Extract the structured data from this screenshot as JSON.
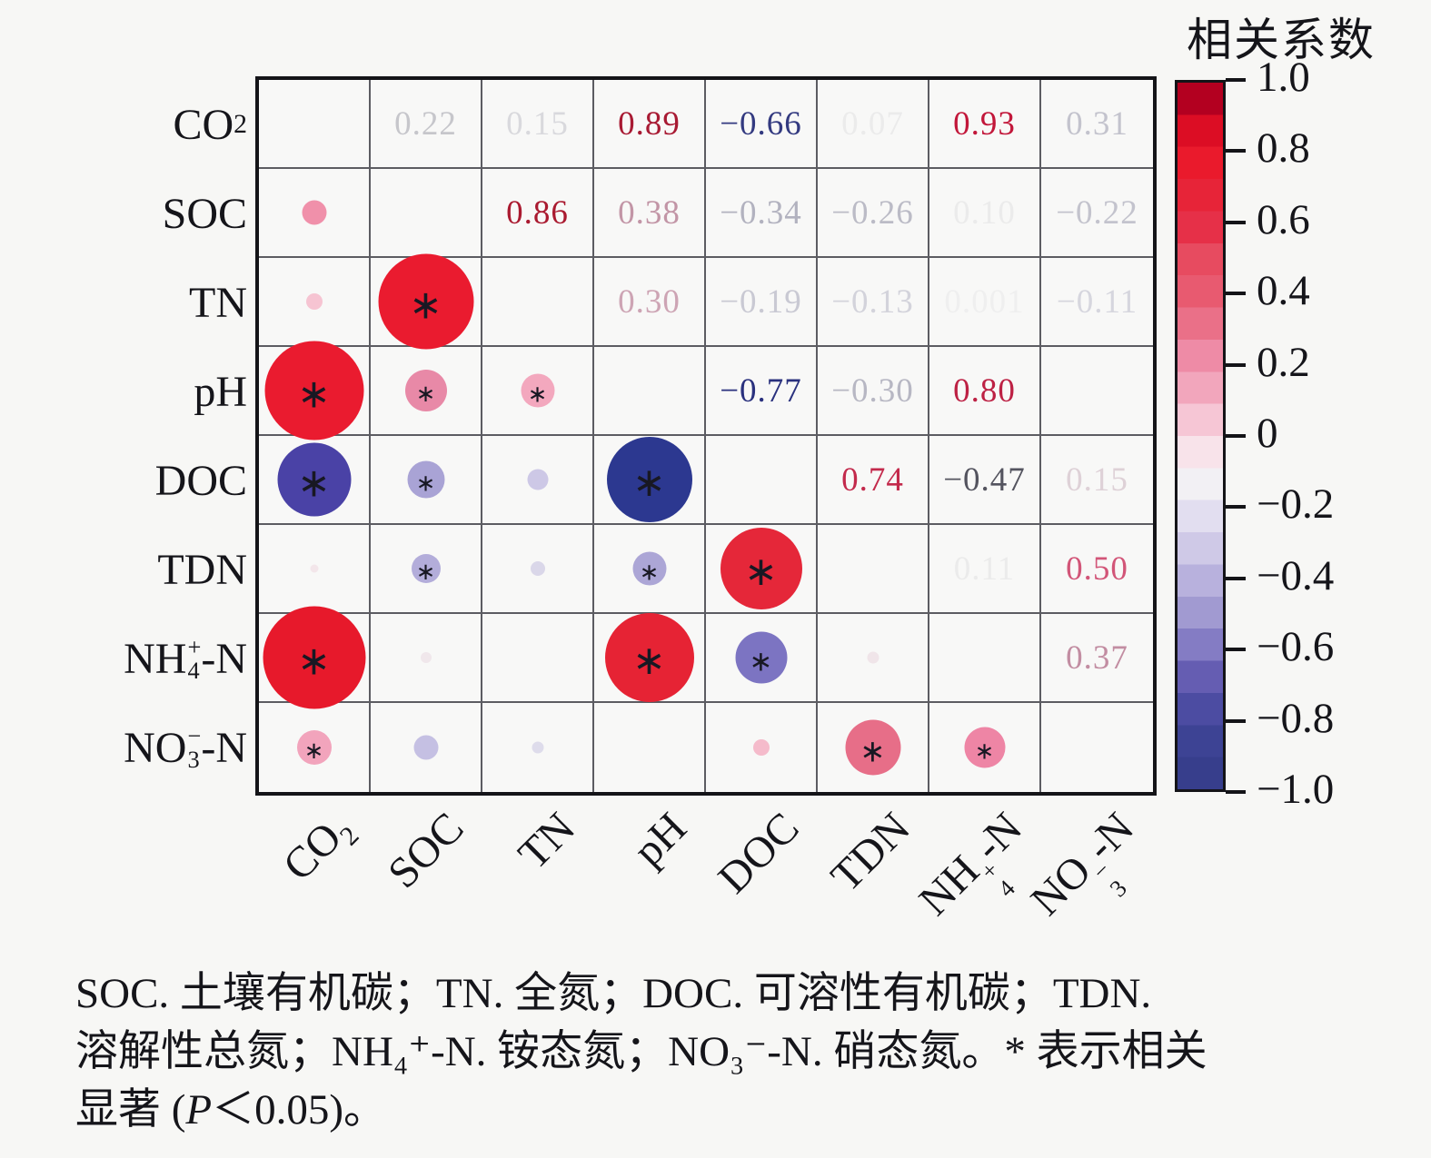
{
  "colorbar": {
    "title": "相关系数",
    "tick_labels": [
      "1.0",
      "0.8",
      "0.6",
      "0.4",
      "0.2",
      "0",
      "−0.2",
      "−0.4",
      "−0.6",
      "−0.8",
      "−1.0"
    ],
    "bands_top_to_bottom": [
      "#b30020",
      "#dc0d24",
      "#ea1a2c",
      "#e72438",
      "#e63048",
      "#e74b60",
      "#e85a70",
      "#ea7088",
      "#ee8ba6",
      "#f2a6bc",
      "#f6c6d5",
      "#f8e3ea",
      "#f2f0f4",
      "#e2def0",
      "#cfc9e7",
      "#b8b1dd",
      "#a19ad1",
      "#847cc4",
      "#655db2",
      "#4c4ca2",
      "#3d4394",
      "#373e8c"
    ]
  },
  "caption": {
    "line1": "SOC. 土壤有机碳；TN. 全氮；DOC. 可溶性有机碳；TDN.",
    "line2": "溶解性总氮；NH₄⁺-N. 铵态氮；NO₃⁻-N. 硝态氮。* 表示相关",
    "line3_pre": "显著 (",
    "line3_p": "P",
    "line3_post": "＜0.05)。"
  },
  "chart_data": {
    "type": "correlation-matrix",
    "legend_title": "相关系数",
    "colorbar_range": [
      1.0,
      -1.0
    ],
    "variables": [
      {
        "id": "co2",
        "base": "CO",
        "sub": "2",
        "sup": "",
        "suffix": ""
      },
      {
        "id": "soc",
        "base": "SOC",
        "sub": "",
        "sup": "",
        "suffix": ""
      },
      {
        "id": "tn",
        "base": "TN",
        "sub": "",
        "sup": "",
        "suffix": ""
      },
      {
        "id": "ph",
        "base": "pH",
        "sub": "",
        "sup": "",
        "suffix": ""
      },
      {
        "id": "doc",
        "base": "DOC",
        "sub": "",
        "sup": "",
        "suffix": ""
      },
      {
        "id": "tdn",
        "base": "TDN",
        "sub": "",
        "sup": "",
        "suffix": ""
      },
      {
        "id": "nh4-n",
        "base": "NH",
        "sub": "4",
        "sup": "+",
        "suffix": "-N"
      },
      {
        "id": "no3-n",
        "base": "NO",
        "sub": "3",
        "sup": "−",
        "suffix": "-N"
      }
    ],
    "pairs": [
      {
        "a": 0,
        "b": 1,
        "r": 0.22,
        "label": "0.22",
        "num_color": "#c6c6cb",
        "circle_color": "#f090aa",
        "star": false
      },
      {
        "a": 0,
        "b": 2,
        "r": 0.15,
        "label": "0.15",
        "num_color": "#d9d9dd",
        "circle_color": "#f6c4d2",
        "star": false
      },
      {
        "a": 0,
        "b": 3,
        "r": 0.89,
        "label": "0.89",
        "num_color": "#a81a33",
        "circle_color": "#ea1b2f",
        "star": true
      },
      {
        "a": 0,
        "b": 4,
        "r": -0.66,
        "label": "−0.66",
        "num_color": "#333a80",
        "circle_color": "#4a42a6",
        "star": true
      },
      {
        "a": 0,
        "b": 5,
        "r": 0.07,
        "label": "0.07",
        "num_color": "#ebebeb",
        "circle_color": "#f3e6ea",
        "star": false
      },
      {
        "a": 0,
        "b": 6,
        "r": 0.93,
        "label": "0.93",
        "num_color": "#c2173a",
        "circle_color": "#e7192b",
        "star": true
      },
      {
        "a": 0,
        "b": 7,
        "r": 0.31,
        "label": "0.31",
        "num_color": "#c3c3cd",
        "circle_color": "#f2a4bc",
        "star": true
      },
      {
        "a": 1,
        "b": 2,
        "r": 0.86,
        "label": "0.86",
        "num_color": "#aa1a30",
        "circle_color": "#ea1b2f",
        "star": true
      },
      {
        "a": 1,
        "b": 3,
        "r": 0.38,
        "label": "0.38",
        "num_color": "#c295a6",
        "circle_color": "#e889a7",
        "star": true
      },
      {
        "a": 1,
        "b": 4,
        "r": -0.34,
        "label": "−0.34",
        "num_color": "#b2b2bf",
        "circle_color": "#a9a3d5",
        "star": true
      },
      {
        "a": 1,
        "b": 5,
        "r": -0.26,
        "label": "−0.26",
        "num_color": "#bbbbc6",
        "circle_color": "#b3adda",
        "star": true
      },
      {
        "a": 1,
        "b": 6,
        "r": 0.1,
        "label": "0.10",
        "num_color": "#ebebeb",
        "circle_color": "#f0e7eb",
        "star": false
      },
      {
        "a": 1,
        "b": 7,
        "r": -0.22,
        "label": "−0.22",
        "num_color": "#c3c3cd",
        "circle_color": "#c5c0e3",
        "star": false
      },
      {
        "a": 2,
        "b": 3,
        "r": 0.3,
        "label": "0.30",
        "num_color": "#cda4b4",
        "circle_color": "#f3a8be",
        "star": true
      },
      {
        "a": 2,
        "b": 4,
        "r": -0.19,
        "label": "−0.19",
        "num_color": "#c9c9d3",
        "circle_color": "#cdc8e6",
        "star": false
      },
      {
        "a": 2,
        "b": 5,
        "r": -0.13,
        "label": "−0.13",
        "num_color": "#d3d3db",
        "circle_color": "#dad7e9",
        "star": false
      },
      {
        "a": 2,
        "b": 6,
        "r": 0.001,
        "label": "0.001",
        "num_color": "#efefef",
        "circle_color": "#eeecee",
        "star": false
      },
      {
        "a": 2,
        "b": 7,
        "r": -0.11,
        "label": "−0.11",
        "num_color": "#d6d6de",
        "circle_color": "#dedceb",
        "star": false
      },
      {
        "a": 3,
        "b": 4,
        "r": -0.77,
        "label": "−0.77",
        "num_color": "#2a317e",
        "circle_color": "#2c3890",
        "star": true
      },
      {
        "a": 3,
        "b": 5,
        "r": -0.3,
        "label": "−0.30",
        "num_color": "#b7b7c3",
        "circle_color": "#aca6d6",
        "star": true
      },
      {
        "a": 3,
        "b": 6,
        "r": 0.8,
        "label": "0.80",
        "num_color": "#bd2144",
        "circle_color": "#e62334",
        "star": true
      },
      {
        "a": 3,
        "b": 7,
        "r": 0,
        "label": "",
        "num_color": "#f8f8f7",
        "circle_color": "#f8f8f7",
        "star": false
      },
      {
        "a": 4,
        "b": 5,
        "r": 0.74,
        "label": "0.74",
        "num_color": "#c32a4c",
        "circle_color": "#e52739",
        "star": true
      },
      {
        "a": 4,
        "b": 6,
        "r": -0.47,
        "label": "−0.47",
        "num_color": "#54545f",
        "circle_color": "#7c74c2",
        "star": true
      },
      {
        "a": 4,
        "b": 7,
        "r": 0.15,
        "label": "0.15",
        "num_color": "#ded1d7",
        "circle_color": "#f5bbcb",
        "star": false
      },
      {
        "a": 5,
        "b": 6,
        "r": 0.11,
        "label": "0.11",
        "num_color": "#ebebeb",
        "circle_color": "#f0e5e9",
        "star": false
      },
      {
        "a": 5,
        "b": 7,
        "r": 0.5,
        "label": "0.50",
        "num_color": "#d25578",
        "circle_color": "#e76e88",
        "star": true
      },
      {
        "a": 6,
        "b": 7,
        "r": 0.37,
        "label": "0.37",
        "num_color": "#c28da2",
        "circle_color": "#ee85a5",
        "star": true
      }
    ],
    "significance_marker": "∗",
    "significance_note": "* 表示相关显著 (P＜0.05)"
  }
}
